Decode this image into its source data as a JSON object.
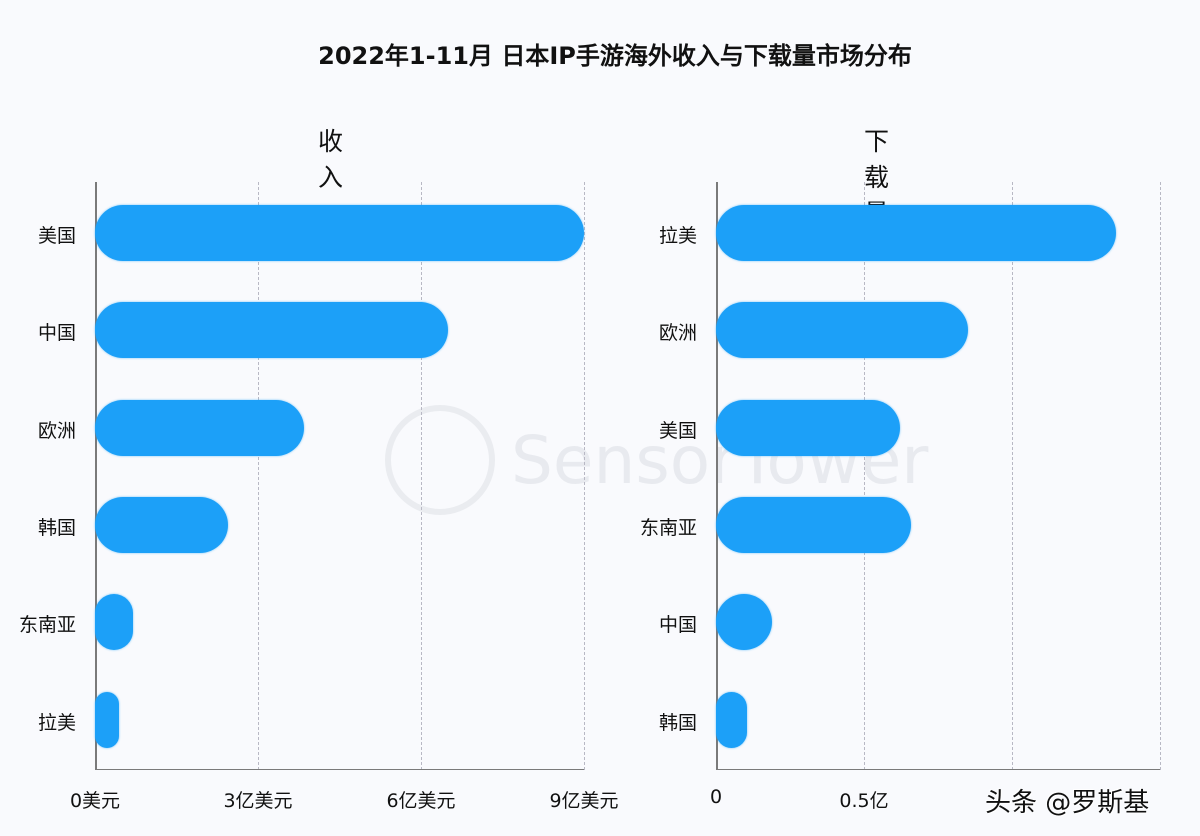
{
  "title": "2022年1-11月 日本IP手游海外收入与下载量市场分布",
  "watermark": "SensorTower",
  "credit": "头条 @罗斯基",
  "colors": {
    "bar": "#1ca0f8",
    "background": "#f9fafd",
    "grid": "#b8b8c4"
  },
  "chart_data": [
    {
      "type": "bar",
      "orientation": "horizontal",
      "title": "收入",
      "categories": [
        "美国",
        "中国",
        "欧洲",
        "韩国",
        "东南亚",
        "拉美"
      ],
      "values": [
        9.0,
        6.5,
        3.85,
        2.45,
        0.7,
        0.45
      ],
      "unit": "亿美元",
      "xlabel": "",
      "ylabel": "",
      "xlim": [
        0,
        9
      ],
      "ticks": [
        {
          "value": 0,
          "label": "0美元"
        },
        {
          "value": 3,
          "label": "3亿美元"
        },
        {
          "value": 6,
          "label": "6亿美元"
        },
        {
          "value": 9,
          "label": "9亿美元"
        }
      ],
      "grid": true
    },
    {
      "type": "bar",
      "orientation": "horizontal",
      "title": "下载量",
      "categories": [
        "拉美",
        "欧洲",
        "美国",
        "东南亚",
        "中国",
        "韩国"
      ],
      "values": [
        1.35,
        0.85,
        0.62,
        0.66,
        0.19,
        0.105
      ],
      "unit": "亿",
      "xlabel": "",
      "ylabel": "",
      "xlim": [
        0,
        1.5
      ],
      "ticks": [
        {
          "value": 0,
          "label": "0"
        },
        {
          "value": 0.5,
          "label": "0.5亿"
        },
        {
          "value": 1.0,
          "label": ""
        },
        {
          "value": 1.5,
          "label": ""
        }
      ],
      "grid": true
    }
  ]
}
